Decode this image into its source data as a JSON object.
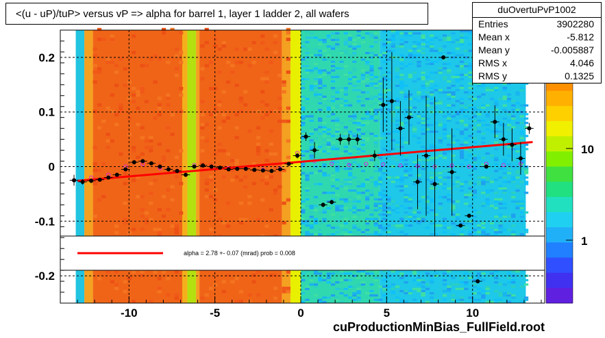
{
  "title": "<(u - uP)/tuP> versus   vP => alpha for barrel 1, layer 1 ladder 2, all wafers",
  "footer": "cuProductionMinBias_FullField.root",
  "stats": {
    "name": "duOvertuPvP1002",
    "rows": [
      {
        "label": "Entries",
        "value": "3902280"
      },
      {
        "label": "Mean x",
        "value": "-5.812"
      },
      {
        "label": "Mean y",
        "value": "-0.005887"
      },
      {
        "label": "RMS x",
        "value": "4.046"
      },
      {
        "label": "RMS y",
        "value": "0.1325"
      }
    ]
  },
  "legend": {
    "fit_text": "alpha =    2.78 +-  0.07 (mrad) prob = 0.008",
    "line_color": "#ff0000"
  },
  "chart_data": {
    "type": "scatter",
    "title": "<(u - uP)/tuP> versus   vP => alpha for barrel 1, layer 1 ladder 2, all wafers",
    "xlim": [
      -14,
      14.2
    ],
    "ylim": [
      -0.25,
      0.25
    ],
    "x_ticks": [
      -10,
      -5,
      0,
      5,
      10
    ],
    "y_ticks": [
      -0.2,
      -0.1,
      0,
      0.1,
      0.2
    ],
    "grid": true,
    "colorbar": {
      "ticks": [
        "1",
        "10"
      ],
      "scale": "log"
    },
    "heatmap_bands": [
      {
        "x0": -13.1,
        "x1": -12.6,
        "color": "#22c4e0"
      },
      {
        "x0": -12.6,
        "x1": -12.1,
        "color": "#f4a020"
      },
      {
        "x0": -12.1,
        "x1": -6.9,
        "color": "#f06418"
      },
      {
        "x0": -6.9,
        "x1": -6.6,
        "color": "#f4b01c"
      },
      {
        "x0": -6.6,
        "x1": -6.1,
        "color": "#b4e010"
      },
      {
        "x0": -6.1,
        "x1": -5.9,
        "color": "#f4a020"
      },
      {
        "x0": -5.9,
        "x1": -1.1,
        "color": "#f06418"
      },
      {
        "x0": -1.1,
        "x1": -0.6,
        "color": "#f4a020"
      },
      {
        "x0": -0.6,
        "x1": 0,
        "color": "#e8f000"
      },
      {
        "x0": 0,
        "x1": 4.6,
        "color": "#30d8b0"
      },
      {
        "x0": 4.6,
        "x1": 13.1,
        "color": "#1ec8e8"
      }
    ],
    "series": [
      {
        "name": "",
        "x": [
          -13.2,
          -12.7,
          -12.2,
          -11.7,
          -11.2,
          -10.7,
          -10.2,
          -9.7,
          -9.2,
          -8.7,
          -8.2,
          -7.7,
          -7.2,
          -6.7,
          -6.2,
          -5.7,
          -5.2,
          -4.7,
          -4.2,
          -3.7,
          -3.2,
          -2.7,
          -2.2,
          -1.7,
          -1.2,
          -0.7,
          -0.2,
          0.3,
          0.8,
          1.3,
          1.8,
          2.3,
          2.8,
          3.3,
          4.3,
          4.8,
          5.3,
          5.8,
          6.3,
          6.8,
          7.3,
          7.8,
          8.3,
          8.8,
          9.3,
          9.8,
          10.3,
          10.8,
          11.3,
          11.8,
          12.3,
          12.8,
          13.3
        ],
        "y": [
          -0.025,
          -0.028,
          -0.026,
          -0.024,
          -0.02,
          -0.015,
          -0.005,
          0.008,
          0.01,
          0.006,
          0.0,
          -0.005,
          -0.008,
          -0.015,
          0.0,
          0.002,
          0.0,
          -0.002,
          -0.005,
          -0.004,
          -0.004,
          -0.006,
          -0.007,
          -0.008,
          -0.005,
          0.005,
          0.02,
          0.055,
          0.03,
          -0.07,
          -0.065,
          0.05,
          0.05,
          0.05,
          0.02,
          0.113,
          0.12,
          0.07,
          0.09,
          -0.028,
          0.02,
          -0.032,
          0.2,
          -0.01,
          -0.108,
          -0.09,
          -0.21,
          0.0,
          0.082,
          0.05,
          0.04,
          0.015,
          0.07
        ],
        "err": [
          0.01,
          0.005,
          0.004,
          0.003,
          0.003,
          0.003,
          0.003,
          0.003,
          0.003,
          0.003,
          0.003,
          0.003,
          0.003,
          0.003,
          0.003,
          0.003,
          0.003,
          0.003,
          0.003,
          0.003,
          0.003,
          0.003,
          0.003,
          0.003,
          0.003,
          0.003,
          0.005,
          0.008,
          0.015,
          0.004,
          0.004,
          0.01,
          0.01,
          0.01,
          0.01,
          0.05,
          0.09,
          0.05,
          0.05,
          0.05,
          0.11,
          0.16,
          0.0,
          0.08,
          0.0,
          0.0,
          0.0,
          0.0,
          0.03,
          0.03,
          0.03,
          0.03,
          0.01
        ]
      },
      {
        "name": "",
        "x": [
          -13.2,
          -12.2,
          -11.2,
          -10.2,
          -9.2,
          -8.2,
          -7.2,
          -6.2,
          -5.2,
          -4.2,
          -3.2,
          -2.2,
          -1.2,
          -0.2,
          0.8,
          1.8,
          2.8,
          3.8,
          4.8,
          5.8,
          6.8,
          7.8,
          8.8,
          9.8,
          10.8,
          11.8,
          12.8
        ],
        "y": [
          -0.025,
          -0.02,
          -0.015,
          0.0,
          0.005,
          -0.003,
          -0.008,
          0.003,
          0.0,
          -0.003,
          -0.004,
          -0.006,
          -0.004,
          0.025,
          0.01,
          0.005,
          0.003,
          0.005,
          0.004,
          0.002,
          0.001,
          0.0,
          0.002,
          0.0,
          0.005,
          0.003,
          0.005
        ]
      }
    ],
    "fit": {
      "x": [
        -13.0,
        13.5
      ],
      "y": [
        -0.026,
        0.045
      ]
    }
  }
}
